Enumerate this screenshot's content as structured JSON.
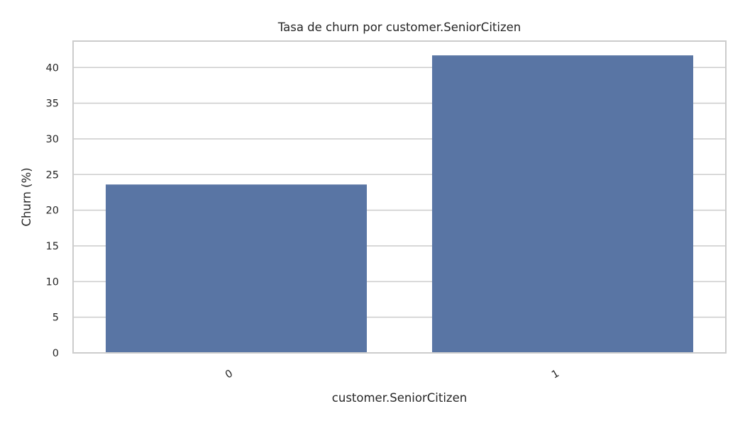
{
  "chart_data": {
    "type": "bar",
    "title": "Tasa de churn por customer.SeniorCitizen",
    "xlabel": "customer.SeniorCitizen",
    "ylabel": "Churn (%)",
    "categories": [
      "0",
      "1"
    ],
    "values": [
      23.6,
      41.7
    ],
    "ylim": [
      0,
      43.7
    ],
    "yticks": [
      0,
      5,
      10,
      15,
      20,
      25,
      30,
      35,
      40
    ],
    "grid": true,
    "bar_color": "#5975a4",
    "grid_color": "#cccccc",
    "frame_color": "#cccccc"
  }
}
